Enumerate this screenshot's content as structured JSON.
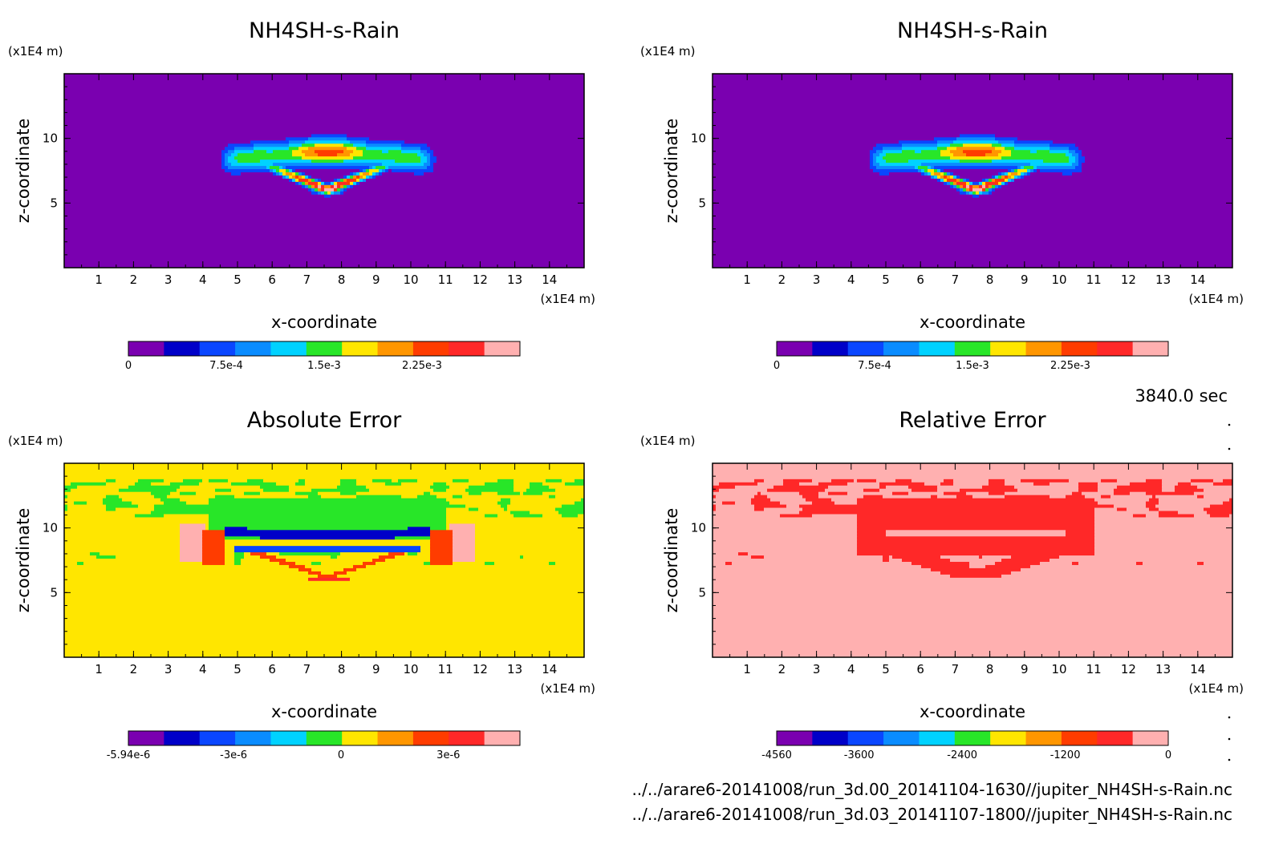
{
  "chart_data": [
    {
      "type": "heatmap",
      "title": "NH4SH-s-Rain",
      "xlabel": "x-coordinate",
      "ylabel": "z-coordinate",
      "x_unit": "(x1E4 m)",
      "y_unit": "(x1E4 m)",
      "xlim": [
        0,
        15
      ],
      "ylim": [
        0,
        15
      ],
      "x_ticks": [
        "1",
        "2",
        "3",
        "4",
        "5",
        "6",
        "7",
        "8",
        "9",
        "10",
        "11",
        "12",
        "13",
        "14"
      ],
      "y_ticks": [
        "5",
        "10"
      ],
      "field": "cloud",
      "colorbar": {
        "range": [
          0,
          0.003
        ],
        "colors": [
          "#7a00b0",
          "#0000c8",
          "#0a46ff",
          "#0a8cff",
          "#00d2ff",
          "#28e628",
          "#ffe600",
          "#ff9600",
          "#ff3c00",
          "#ff2828",
          "#ffb0b0"
        ],
        "tick_labels": [
          "0",
          "7.5e-4",
          "1.5e-3",
          "2.25e-3"
        ],
        "tick_values": [
          0,
          0.00075,
          0.0015,
          0.00225
        ]
      }
    },
    {
      "type": "heatmap",
      "title": "NH4SH-s-Rain",
      "xlabel": "x-coordinate",
      "ylabel": "z-coordinate",
      "x_unit": "(x1E4 m)",
      "y_unit": "(x1E4 m)",
      "xlim": [
        0,
        15
      ],
      "ylim": [
        0,
        15
      ],
      "x_ticks": [
        "1",
        "2",
        "3",
        "4",
        "5",
        "6",
        "7",
        "8",
        "9",
        "10",
        "11",
        "12",
        "13",
        "14"
      ],
      "y_ticks": [
        "5",
        "10"
      ],
      "field": "cloud",
      "colorbar": {
        "range": [
          0,
          0.003
        ],
        "colors": [
          "#7a00b0",
          "#0000c8",
          "#0a46ff",
          "#0a8cff",
          "#00d2ff",
          "#28e628",
          "#ffe600",
          "#ff9600",
          "#ff3c00",
          "#ff2828",
          "#ffb0b0"
        ],
        "tick_labels": [
          "0",
          "7.5e-4",
          "1.5e-3",
          "2.25e-3"
        ],
        "tick_values": [
          0,
          0.00075,
          0.0015,
          0.00225
        ]
      }
    },
    {
      "type": "heatmap",
      "title": "Absolute Error",
      "xlabel": "x-coordinate",
      "ylabel": "z-coordinate",
      "x_unit": "(x1E4 m)",
      "y_unit": "(x1E4 m)",
      "xlim": [
        0,
        15
      ],
      "ylim": [
        0,
        15
      ],
      "x_ticks": [
        "1",
        "2",
        "3",
        "4",
        "5",
        "6",
        "7",
        "8",
        "9",
        "10",
        "11",
        "12",
        "13",
        "14"
      ],
      "y_ticks": [
        "5",
        "10"
      ],
      "field": "abs",
      "colorbar": {
        "range": [
          -5.94e-06,
          5e-06
        ],
        "colors": [
          "#7a00b0",
          "#0000c8",
          "#0a46ff",
          "#0a8cff",
          "#00d2ff",
          "#28e628",
          "#ffe600",
          "#ff9600",
          "#ff3c00",
          "#ff2828",
          "#ffb0b0"
        ],
        "tick_labels": [
          "-5.94e-6",
          "-3e-6",
          "0",
          "3e-6"
        ],
        "tick_values": [
          -5.94e-06,
          -3e-06,
          0,
          3e-06
        ]
      }
    },
    {
      "type": "heatmap",
      "title": "Relative Error",
      "xlabel": "x-coordinate",
      "ylabel": "z-coordinate",
      "x_unit": "(x1E4 m)",
      "y_unit": "(x1E4 m)",
      "xlim": [
        0,
        15
      ],
      "ylim": [
        0,
        15
      ],
      "x_ticks": [
        "1",
        "2",
        "3",
        "4",
        "5",
        "6",
        "7",
        "8",
        "9",
        "10",
        "11",
        "12",
        "13",
        "14"
      ],
      "y_ticks": [
        "5",
        "10"
      ],
      "field": "rel",
      "colorbar": {
        "range": [
          -4560,
          0
        ],
        "colors": [
          "#7a00b0",
          "#0000c8",
          "#0a46ff",
          "#0a8cff",
          "#00d2ff",
          "#28e628",
          "#ffe600",
          "#ff9600",
          "#ff3c00",
          "#ff2828",
          "#ffb0b0"
        ],
        "tick_labels": [
          "-4560",
          "-3600",
          "-2400",
          "-1200",
          "0"
        ],
        "tick_values": [
          -4560,
          -3600,
          -2400,
          -1200,
          0
        ]
      }
    }
  ],
  "time_label": "3840.0 sec",
  "source_files": [
    "../../arare6-20141008/run_3d.00_20141104-1630//jupiter_NH4SH-s-Rain.nc",
    "../../arare6-20141008/run_3d.03_20141107-1800//jupiter_NH4SH-s-Rain.nc"
  ]
}
